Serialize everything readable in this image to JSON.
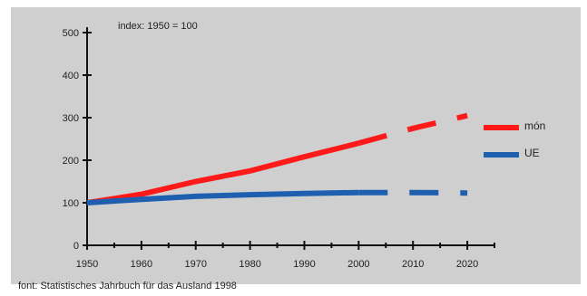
{
  "chart_data": {
    "type": "line",
    "annotation": "index: 1950 = 100",
    "source": "font: Statistisches Jahrbuch für das Ausland 1998",
    "x": [
      1950,
      1960,
      1970,
      1980,
      1990,
      2000,
      2010,
      2020
    ],
    "x_ticks": [
      "1950",
      "1960",
      "1970",
      "1980",
      "1990",
      "2000",
      "2010",
      "2020"
    ],
    "y_ticks": [
      "0",
      "100",
      "200",
      "300",
      "400",
      "500"
    ],
    "xlim": [
      1950,
      2025
    ],
    "ylim": [
      0,
      500
    ],
    "legend_position": "right",
    "series": [
      {
        "name": "món",
        "color": "#ff1a1a",
        "values": [
          100,
          120,
          150,
          175,
          208,
          240,
          275,
          305
        ],
        "projection_from": 2000
      },
      {
        "name": "UE",
        "color": "#1f5fb0",
        "values": [
          100,
          108,
          115,
          119,
          122,
          124,
          124,
          123
        ],
        "projection_from": 2000
      }
    ]
  }
}
